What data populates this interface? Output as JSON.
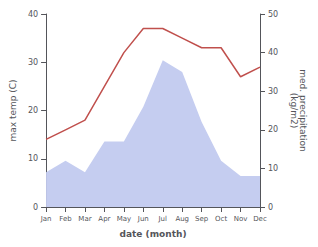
{
  "chart_data": {
    "type": "line",
    "categories": [
      "Jan",
      "Feb",
      "Mar",
      "Apr",
      "May",
      "Jun",
      "Jul",
      "Aug",
      "Sep",
      "Oct",
      "Nov",
      "Dec"
    ],
    "series": [
      {
        "type": "area",
        "color": "#c5cdf0",
        "axis": "y2",
        "values": [
          9,
          12,
          9,
          17,
          17,
          26,
          38,
          35,
          22,
          12,
          8,
          8
        ]
      },
      {
        "type": "line",
        "color": "#c0504d",
        "values": [
          14,
          16,
          18,
          25,
          32,
          37,
          37,
          35,
          33,
          33,
          27,
          29
        ]
      }
    ],
    "xlabel": "date (month)",
    "ylabel": "max temp (C)",
    "y2label": "med. precipitation\n(kg/m2)",
    "ylim": [
      0,
      40
    ],
    "yticks": [
      0,
      10,
      20,
      30,
      40
    ],
    "y2lim": [
      0,
      50
    ],
    "y2ticks": [
      0,
      10,
      20,
      30,
      40,
      50
    ],
    "grid": false
  }
}
